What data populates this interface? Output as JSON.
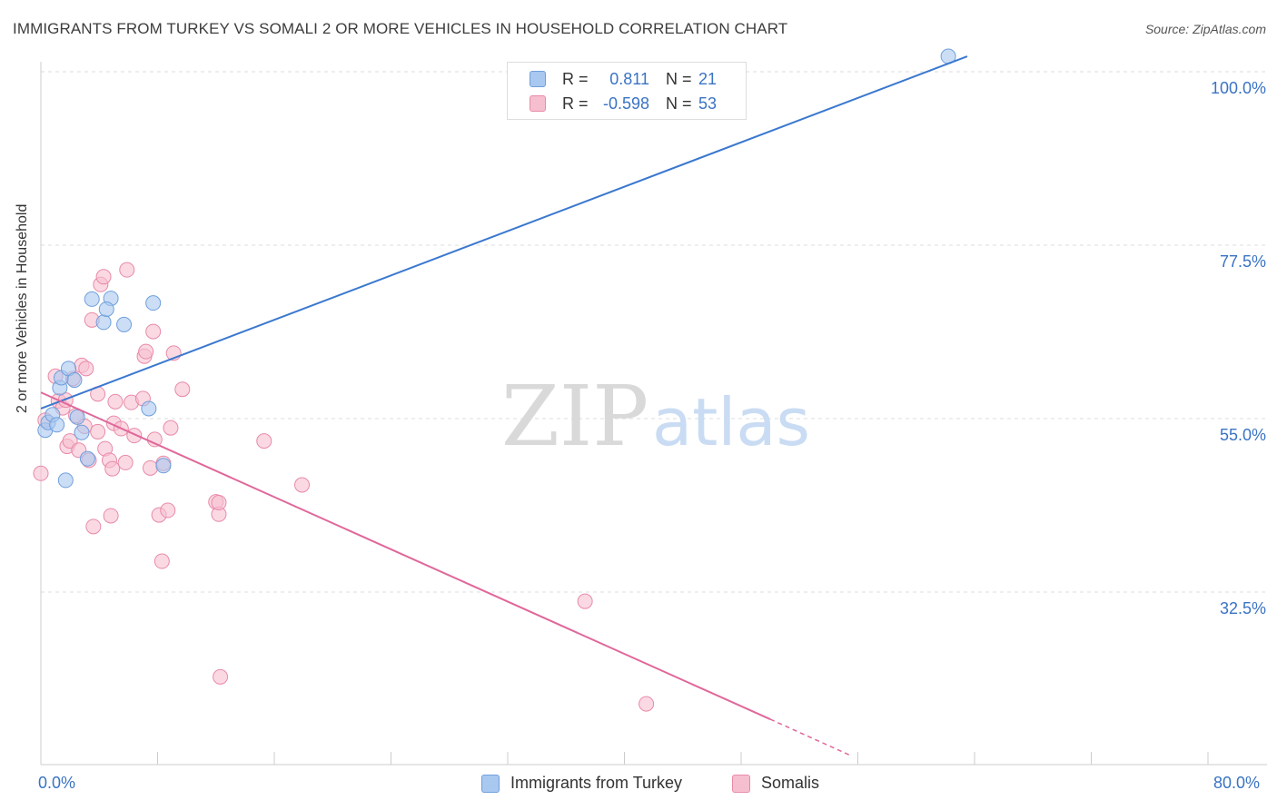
{
  "title": "IMMIGRANTS FROM TURKEY VS SOMALI 2 OR MORE VEHICLES IN HOUSEHOLD CORRELATION CHART",
  "source": "Source: ZipAtlas.com",
  "watermark": {
    "zip": "ZIP",
    "atlas": "atlas"
  },
  "legend": {
    "turkey": {
      "r_label": "R =",
      "r_value": "0.811",
      "n_label": "N =",
      "n_value": "21"
    },
    "somali": {
      "r_label": "R =",
      "r_value": "-0.598",
      "n_label": "N =",
      "n_value": "53"
    }
  },
  "bottom_legend": {
    "turkey": "Immigrants from Turkey",
    "somali": "Somalis"
  },
  "axis": {
    "x_min_label": "0.0%",
    "x_max_label": "80.0%",
    "y_ticks": [
      "100.0%",
      "77.5%",
      "55.0%",
      "32.5%"
    ]
  },
  "colors": {
    "turkey_fill": "#a9c8f0",
    "turkey_stroke": "#6f9fdc",
    "turkey_line": "#3a78cf",
    "somali_fill": "#f6bfd0",
    "somali_stroke": "#e98aa8",
    "somali_line": "#e0679a",
    "tick_label": "#3a73c4",
    "grid": "#dddddd"
  },
  "chart_data": {
    "type": "scatter",
    "title": "IMMIGRANTS FROM TURKEY VS SOMALI 2 OR MORE VEHICLES IN HOUSEHOLD CORRELATION CHART",
    "xlabel": "",
    "ylabel": "2 or more Vehicles in Household",
    "xlim": [
      0,
      80
    ],
    "ylim": [
      10,
      102
    ],
    "y_gridlines": [
      32.5,
      55.0,
      77.5,
      100.0
    ],
    "series": [
      {
        "name": "Immigrants from Turkey",
        "points": [
          [
            0.3,
            53.5
          ],
          [
            0.5,
            54.5
          ],
          [
            0.8,
            55.5
          ],
          [
            1.1,
            54.2
          ],
          [
            1.3,
            59.0
          ],
          [
            1.4,
            60.3
          ],
          [
            1.9,
            61.5
          ],
          [
            2.3,
            60.0
          ],
          [
            2.5,
            55.2
          ],
          [
            2.8,
            53.2
          ],
          [
            3.2,
            49.8
          ],
          [
            3.5,
            70.5
          ],
          [
            4.3,
            67.5
          ],
          [
            4.8,
            70.6
          ],
          [
            4.5,
            69.2
          ],
          [
            5.7,
            67.2
          ],
          [
            1.7,
            47.0
          ],
          [
            7.4,
            56.3
          ],
          [
            7.7,
            70.0
          ],
          [
            8.4,
            48.9
          ],
          [
            62.2,
            102.0
          ]
        ],
        "trend": {
          "x": [
            0,
            63.5
          ],
          "y": [
            56.3,
            102.0
          ]
        }
      },
      {
        "name": "Somalis",
        "points": [
          [
            0.0,
            47.9
          ],
          [
            0.3,
            54.8
          ],
          [
            1.0,
            60.5
          ],
          [
            1.2,
            57.3
          ],
          [
            1.5,
            56.4
          ],
          [
            1.7,
            57.4
          ],
          [
            1.8,
            51.4
          ],
          [
            2.0,
            52.1
          ],
          [
            2.2,
            60.2
          ],
          [
            2.4,
            55.4
          ],
          [
            2.6,
            50.9
          ],
          [
            2.8,
            61.9
          ],
          [
            3.0,
            54.0
          ],
          [
            3.1,
            61.5
          ],
          [
            3.3,
            49.6
          ],
          [
            3.5,
            67.8
          ],
          [
            3.6,
            41.0
          ],
          [
            3.9,
            53.3
          ],
          [
            3.9,
            58.2
          ],
          [
            4.1,
            72.4
          ],
          [
            4.3,
            73.4
          ],
          [
            4.4,
            51.1
          ],
          [
            4.7,
            49.6
          ],
          [
            4.8,
            42.4
          ],
          [
            4.9,
            48.5
          ],
          [
            5.0,
            54.4
          ],
          [
            5.1,
            57.2
          ],
          [
            5.5,
            53.7
          ],
          [
            5.8,
            49.3
          ],
          [
            5.9,
            74.3
          ],
          [
            6.2,
            57.1
          ],
          [
            6.4,
            52.8
          ],
          [
            7.0,
            57.6
          ],
          [
            7.1,
            63.1
          ],
          [
            7.2,
            63.7
          ],
          [
            7.5,
            48.6
          ],
          [
            7.7,
            66.3
          ],
          [
            7.8,
            52.3
          ],
          [
            8.1,
            42.5
          ],
          [
            8.3,
            36.5
          ],
          [
            8.4,
            49.2
          ],
          [
            8.7,
            43.1
          ],
          [
            8.9,
            53.8
          ],
          [
            9.1,
            63.5
          ],
          [
            9.7,
            58.8
          ],
          [
            12.0,
            44.2
          ],
          [
            12.2,
            42.6
          ],
          [
            12.2,
            44.1
          ],
          [
            12.3,
            21.5
          ],
          [
            15.3,
            52.1
          ],
          [
            17.9,
            46.4
          ],
          [
            37.3,
            31.3
          ],
          [
            41.5,
            18.0
          ]
        ],
        "trend": {
          "x": [
            0,
            50.0
          ],
          "y": [
            58.4,
            16.0
          ]
        },
        "trend_dashed": {
          "x": [
            50.0,
            55.5
          ],
          "y": [
            16.0,
            11.3
          ]
        }
      }
    ]
  }
}
